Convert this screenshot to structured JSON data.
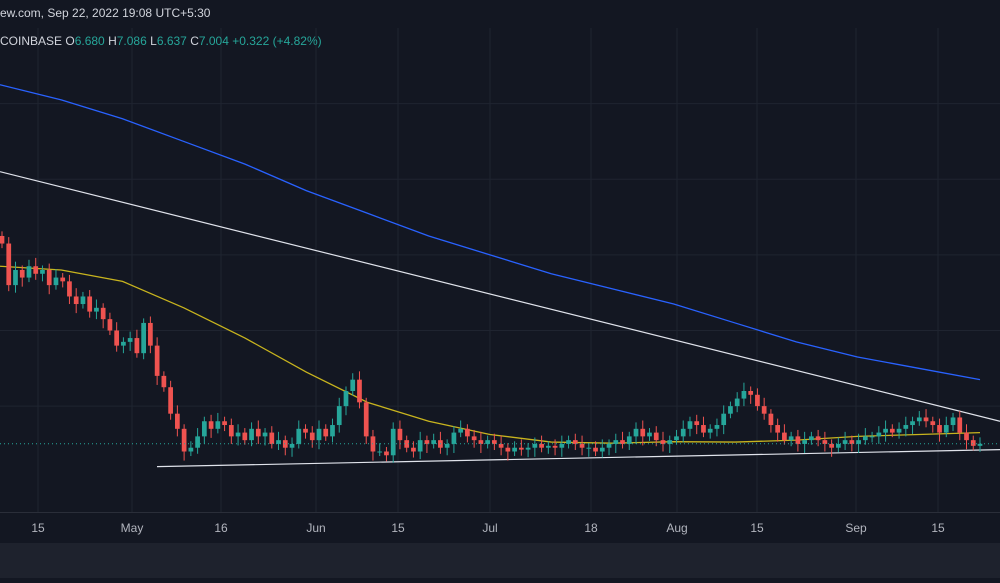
{
  "header": {
    "source_line": "ew.com, Sep 22, 2022 19:08 UTC+5:30",
    "exchange": "COINBASE",
    "open_label": "O",
    "open": "6.680",
    "high_label": "H",
    "high": "7.086",
    "low_label": "L",
    "low": "6.637",
    "close_label": "C",
    "close": "7.004",
    "change": "+0.322",
    "change_pct": "(+4.82%)"
  },
  "colors": {
    "background": "#131722",
    "up": "#26a69a",
    "down": "#ef5350",
    "ma_fast": "#c8b41e",
    "ma_slow": "#2962ff",
    "trendline": "#e0e3eb",
    "grid": "#1f2430"
  },
  "chart_data": {
    "type": "candlestick",
    "x_ticks": [
      "15",
      "May",
      "16",
      "Jun",
      "15",
      "Jul",
      "18",
      "Aug",
      "15",
      "Sep",
      "15"
    ],
    "y_range": [
      5.2,
      18.0
    ],
    "grid": true,
    "last_price": 7.004,
    "series": [
      {
        "name": "",
        "kind": "candles",
        "period": "daily",
        "date_range": [
          "2022-04-08",
          "2022-09-22"
        ],
        "ohlc_close": [
          12.3,
          11.2,
          11.6,
          11.4,
          11.7,
          11.5,
          11.6,
          11.2,
          11.4,
          11.3,
          10.9,
          10.7,
          10.9,
          10.5,
          10.6,
          10.3,
          10.0,
          9.6,
          9.7,
          9.8,
          9.4,
          10.2,
          9.6,
          8.8,
          8.5,
          7.8,
          7.4,
          6.8,
          6.9,
          7.2,
          7.6,
          7.4,
          7.6,
          7.5,
          7.2,
          7.3,
          7.1,
          7.4,
          7.2,
          7.3,
          7.0,
          7.1,
          6.9,
          7.0,
          7.4,
          7.3,
          7.1,
          7.4,
          7.2,
          7.5,
          8.0,
          8.4,
          8.7,
          8.1,
          7.2,
          6.8,
          6.8,
          6.7,
          7.4,
          7.1,
          6.9,
          6.8,
          7.1,
          7.0,
          7.1,
          6.9,
          7.0,
          7.3,
          7.4,
          7.2,
          7.1,
          7.0,
          7.1,
          7.0,
          6.9,
          6.8,
          6.9,
          6.85,
          6.9,
          7.0,
          6.9,
          6.95,
          6.9,
          7.0,
          7.1,
          7.0,
          6.9,
          6.9,
          6.8,
          6.9,
          7.0,
          7.1,
          7.0,
          7.2,
          7.4,
          7.2,
          7.3,
          7.1,
          7.0,
          7.1,
          7.2,
          7.4,
          7.6,
          7.5,
          7.3,
          7.4,
          7.5,
          7.8,
          8.0,
          8.2,
          8.4,
          8.3,
          8.0,
          7.8,
          7.5,
          7.3,
          7.1,
          7.2,
          7.0,
          7.1,
          7.2,
          7.1,
          7.0,
          6.9,
          7.0,
          7.1,
          7.0,
          7.1,
          7.2,
          7.2,
          7.3,
          7.4,
          7.3,
          7.4,
          7.5,
          7.6,
          7.7,
          7.6,
          7.5,
          7.3,
          7.5,
          7.7,
          7.3,
          7.1,
          6.95,
          7.004
        ]
      },
      {
        "name": "",
        "kind": "moving-average-fast",
        "color": "#c8b41e",
        "y": [
          11.7,
          11.6,
          11.3,
          10.6,
          9.8,
          8.9,
          8.1,
          7.6,
          7.25,
          7.05,
          7.02,
          7.06,
          7.05,
          7.1,
          7.2,
          7.25,
          7.3
        ]
      },
      {
        "name": "",
        "kind": "moving-average-slow",
        "color": "#2962ff",
        "y": [
          16.5,
          16.1,
          15.6,
          15.0,
          14.4,
          13.7,
          13.1,
          12.5,
          12.0,
          11.5,
          11.1,
          10.7,
          10.2,
          9.7,
          9.3,
          9.0,
          8.7
        ]
      },
      {
        "name": "",
        "kind": "trendline-upper",
        "y_start": 14.2,
        "y_end": 7.6
      },
      {
        "name": "",
        "kind": "trendline-lower",
        "y_start": 6.4,
        "y_end": 6.85
      }
    ]
  }
}
